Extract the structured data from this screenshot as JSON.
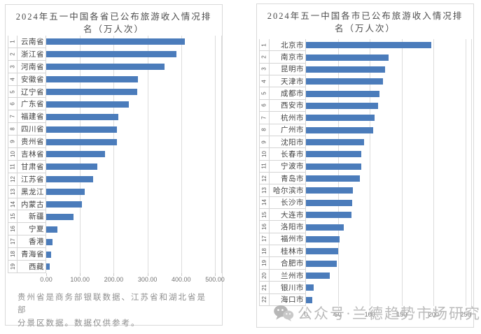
{
  "watermark": {
    "text": "公众号·兰德趋势市场研究",
    "icon": "wechat-icon",
    "color": "#b0b0b0"
  },
  "colors": {
    "bar": "#4b7cbb",
    "grid": "#dcdcdc",
    "panel_border": "#d9d9d9",
    "title_text": "#4c4c4c",
    "footnote_text": "#8f8f8f",
    "tick_text": "#737373",
    "label_text": "#404040"
  },
  "chart_data": [
    {
      "type": "bar",
      "orientation": "horizontal",
      "title": "2024年五一中国各省已公布旅游收入情况排名（万人次）",
      "title_lines": [
        "2024年五一中国各省已公布旅游收入情况排",
        "名（万人次）"
      ],
      "ranks": [
        "1",
        "2",
        "3",
        "4",
        "5",
        "6",
        "7",
        "8",
        "9",
        "10",
        "11",
        "12",
        "13",
        "14",
        "15",
        "16",
        "17",
        "18",
        "19"
      ],
      "categories": [
        "云南省",
        "浙江省",
        "河南省",
        "安徽省",
        "辽宁省",
        "广东省",
        "福建省",
        "四川省",
        "贵州省",
        "吉林省",
        "甘肃省",
        "江苏省",
        "黑龙江",
        "内蒙古",
        "新疆",
        "宁夏",
        "香港",
        "青海省",
        "西藏"
      ],
      "values": [
        410,
        385,
        350,
        272,
        269,
        245,
        214,
        210,
        209,
        175,
        152,
        140,
        114,
        106,
        81,
        33,
        19,
        15,
        10
      ],
      "xlim": [
        0,
        500
      ],
      "tick_step": 100,
      "x_ticks": [
        "0.00",
        "100.00",
        "200.00",
        "300.00",
        "400.00",
        "500.00"
      ],
      "grid": true,
      "legend": false,
      "bar_color": "#4b7cbb",
      "footnote_lines": [
        "贵州省是商务部银联数据、江苏省和湖北省是部",
        "分景区数据。数据仅供参考。"
      ]
    },
    {
      "type": "bar",
      "orientation": "horizontal",
      "title": "2024年五一中国各市已公布旅游收入情况排名（万人次）",
      "title_lines": [
        "2024年五一中国各市已公布旅游收入情况排",
        "名（万人次）"
      ],
      "ranks": [
        "1",
        "2",
        "3",
        "4",
        "5",
        "6",
        "7",
        "8",
        "9",
        "10",
        "11",
        "12",
        "13",
        "14",
        "15",
        "16",
        "17",
        "18",
        "19",
        "20",
        "21",
        "22"
      ],
      "categories": [
        "北京市",
        "南京市",
        "昆明市",
        "天津市",
        "成都市",
        "西安市",
        "杭州市",
        "广州市",
        "沈阳市",
        "长春市",
        "宁波市",
        "青岛市",
        "哈尔滨市",
        "长沙市",
        "大连市",
        "洛阳市",
        "福州市",
        "桂林市",
        "合肥市",
        "兰州市",
        "银川市",
        "海口市"
      ],
      "values": [
        196,
        129,
        124,
        121,
        115,
        113,
        107,
        105,
        91,
        87,
        87,
        84,
        73,
        72,
        71,
        59,
        53,
        50,
        48,
        37,
        12,
        10
      ],
      "xlim": [
        0,
        250
      ],
      "tick_step": 50,
      "x_ticks": [
        "0",
        "50",
        "100",
        "150",
        "200",
        "250"
      ],
      "grid": true,
      "legend": false,
      "bar_color": "#4b7cbb",
      "footnote_lines": []
    }
  ]
}
